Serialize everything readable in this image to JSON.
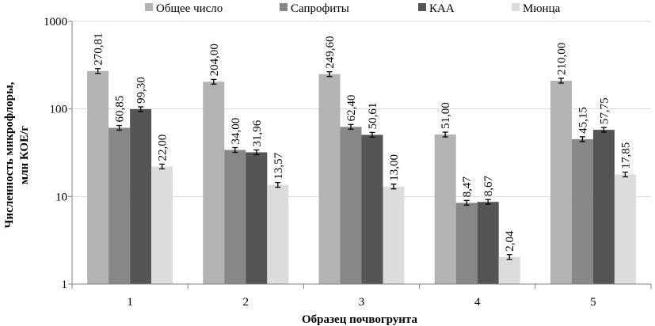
{
  "chart_data": {
    "type": "bar",
    "title": "",
    "xlabel": "Образец почвогрунта",
    "ylabel": [
      "Численность микрофлоры,",
      "млн КОЕ/г"
    ],
    "yscale": "log",
    "ylim": [
      1,
      1000
    ],
    "yticks": [
      "1",
      "10",
      "100",
      "1000"
    ],
    "categories": [
      "1",
      "2",
      "3",
      "4",
      "5"
    ],
    "legend_position": "top",
    "error_bars": true,
    "series": [
      {
        "name": "Общее число",
        "color": "#b3b3b3",
        "values": [
          270.81,
          204.0,
          249.6,
          51.0,
          210.0
        ],
        "labels": [
          "270,81",
          "204,00",
          "249,60",
          "51,00",
          "210,00"
        ]
      },
      {
        "name": "Сапрофиты",
        "color": "#878787",
        "values": [
          60.85,
          34.0,
          62.4,
          8.47,
          45.15
        ],
        "labels": [
          "60,85",
          "34,00",
          "62,40",
          "8,47",
          "45,15"
        ]
      },
      {
        "name": "КАА",
        "color": "#555555",
        "values": [
          99.3,
          31.96,
          50.61,
          8.67,
          57.75
        ],
        "labels": [
          "99,30",
          "31,96",
          "50,61",
          "8,67",
          "57,75"
        ]
      },
      {
        "name": "Мюнца",
        "color": "#dcdcdc",
        "values": [
          22.0,
          13.57,
          13.0,
          2.04,
          17.85
        ],
        "labels": [
          "22,00",
          "13,57",
          "13,00",
          "2,04",
          "17,85"
        ]
      }
    ]
  }
}
